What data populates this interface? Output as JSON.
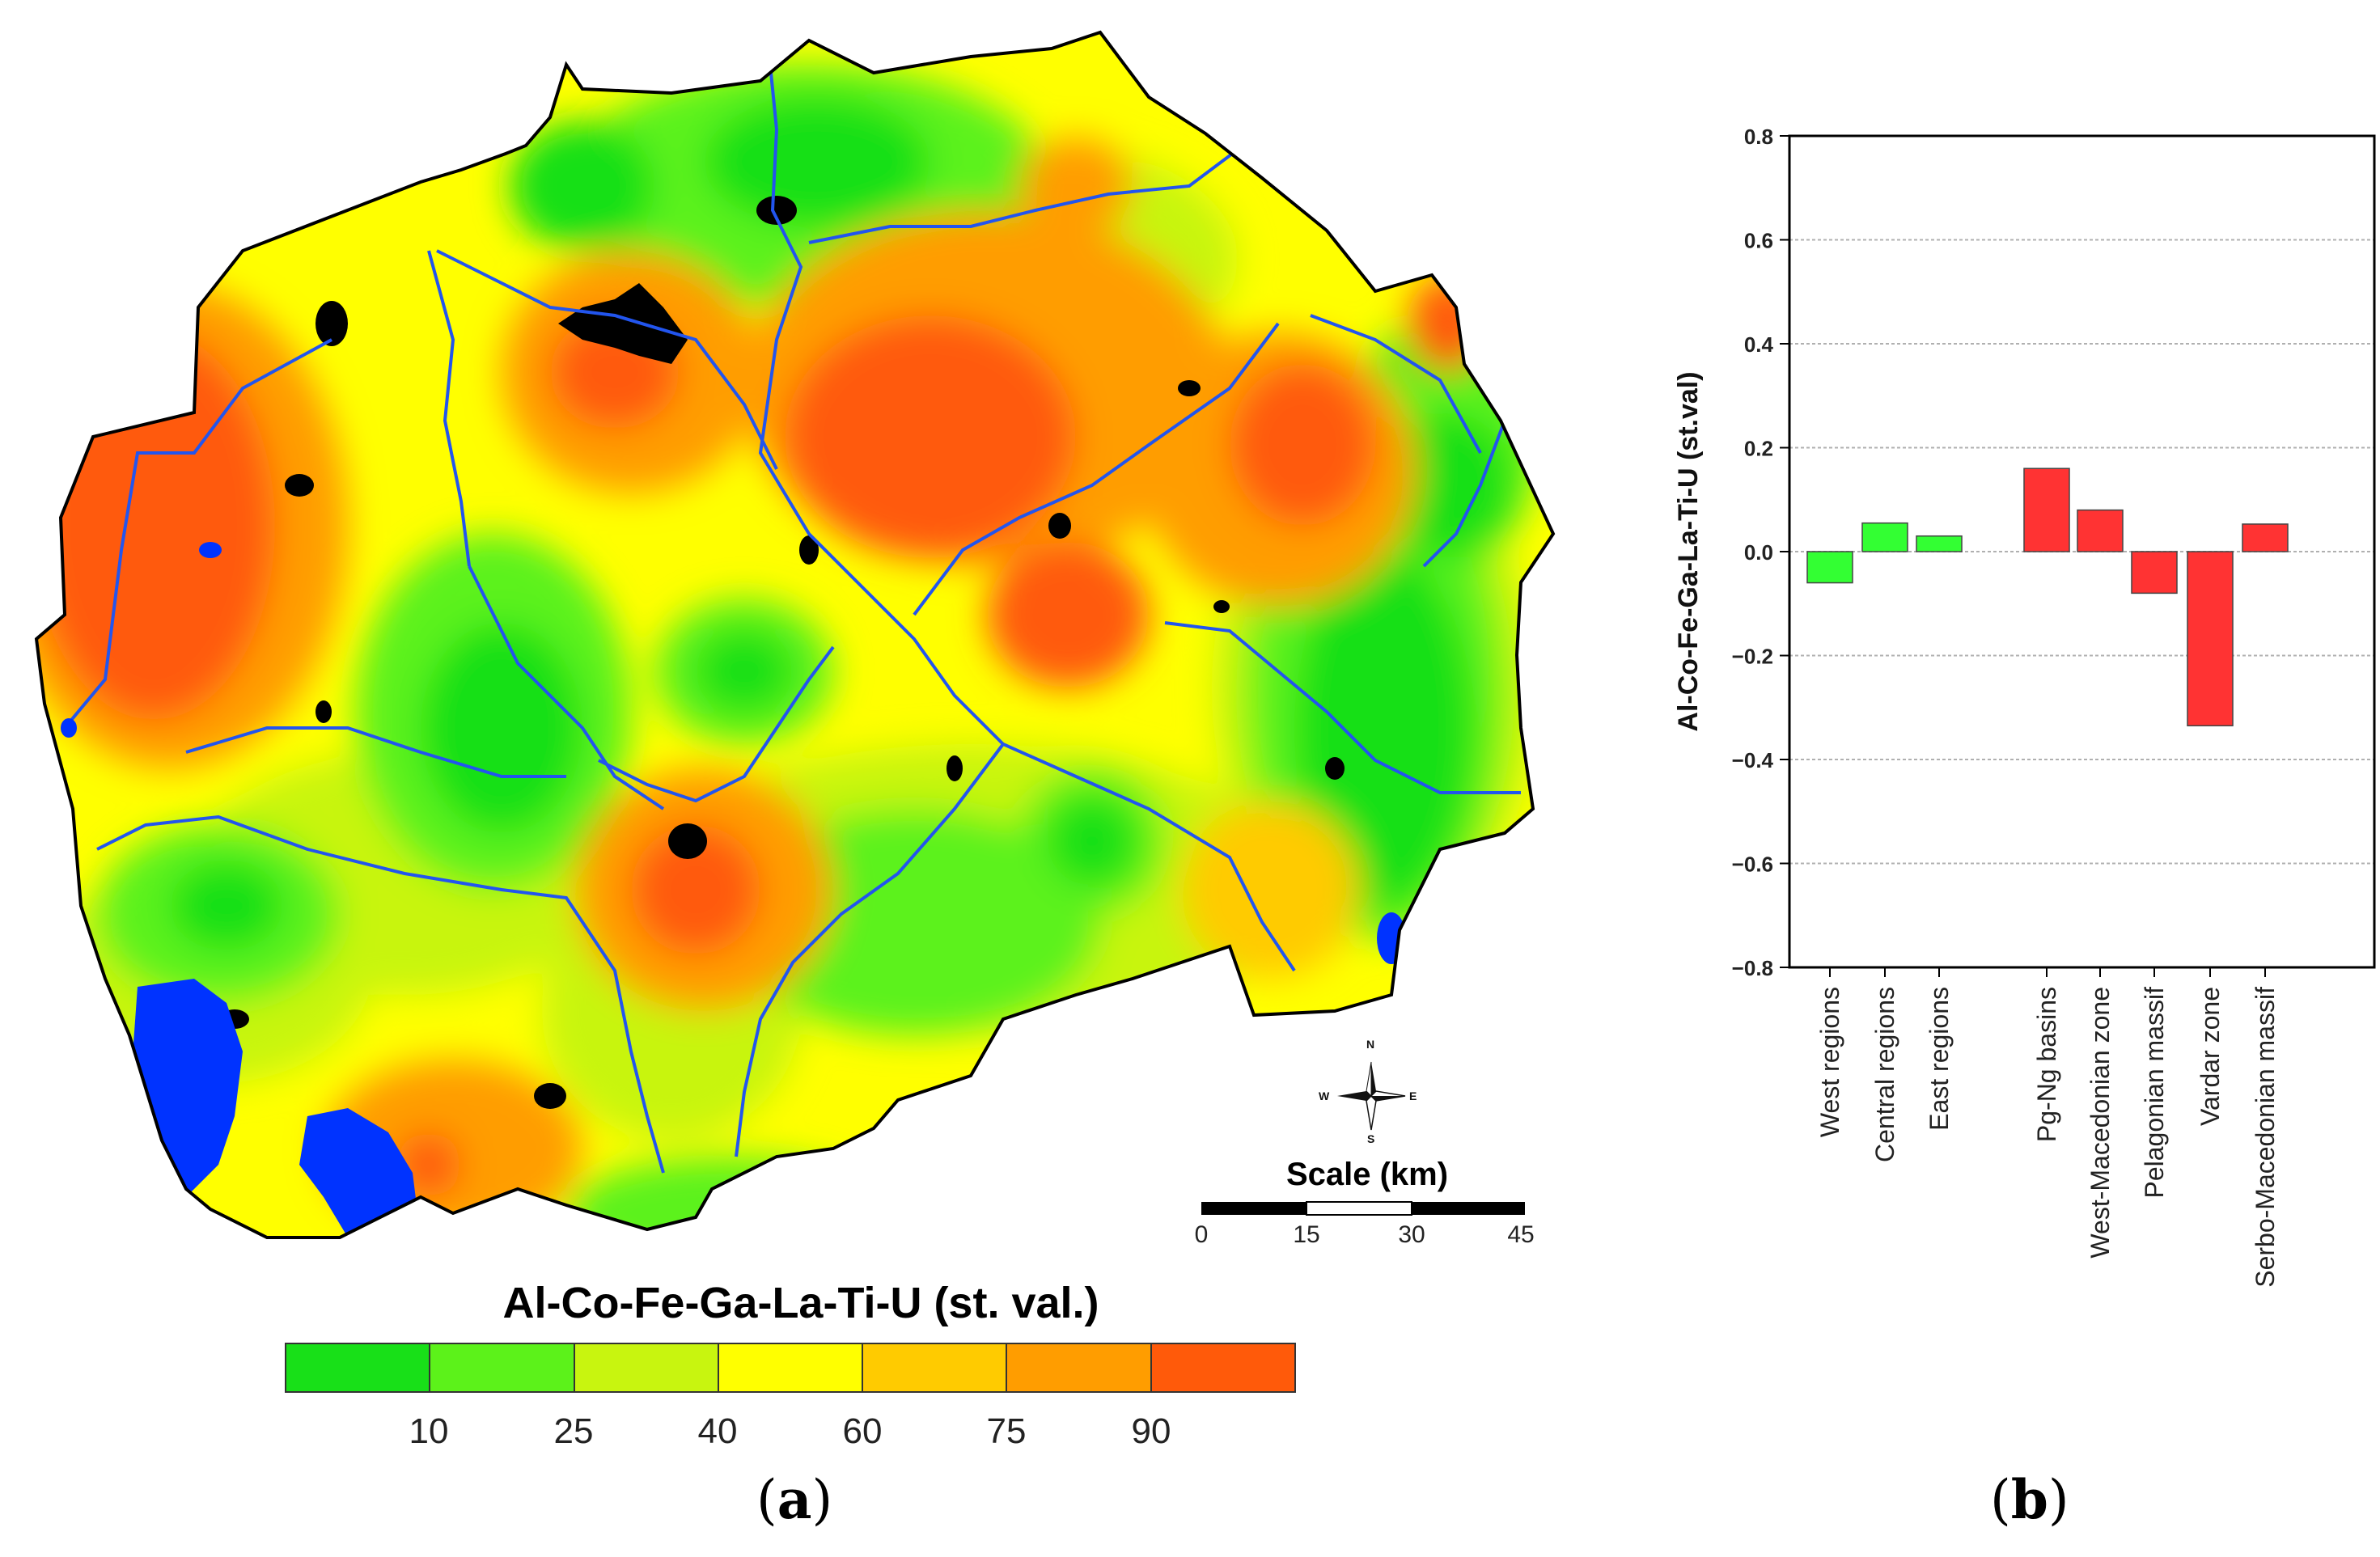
{
  "map": {
    "legend": {
      "title": "Al-Co-Fe-Ga-La-Ti-U (st. val.)",
      "colors": [
        "#18e018",
        "#5cf21a",
        "#c8f50f",
        "#ffff00",
        "#ffcb00",
        "#ff9d00",
        "#ff5a0a"
      ],
      "ticks": [
        "10",
        "25",
        "40",
        "60",
        "75",
        "90"
      ]
    },
    "scale": {
      "title": "Scale (km)",
      "ticks": [
        "0",
        "15",
        "30",
        "45"
      ]
    },
    "compass": {
      "n": "N",
      "s": "S",
      "e": "E",
      "w": "W"
    },
    "panel_label": {
      "open": "(",
      "letter": "a",
      "close": ")"
    },
    "colors": {
      "water": "#0033ff",
      "river": "#2255ee",
      "urban": "#000000",
      "border": "#000000"
    },
    "icon": "compass-rose-icon"
  },
  "chart": {
    "panel_label": {
      "open": "(",
      "letter": "b",
      "close": ")"
    },
    "colors": {
      "group1": "#33ff33",
      "group2": "#ff3333",
      "grid": "#b0b0b0"
    }
  },
  "chart_data": {
    "type": "bar",
    "ylabel": "Al-Co-Fe-Ga-La-Ti-U (st.val)",
    "xlabel": "",
    "ylim": [
      -0.8,
      0.8
    ],
    "yticks": [
      "0.8",
      "0.6",
      "0.4",
      "0.2",
      "0.0",
      "−0.2",
      "−0.4",
      "−0.6",
      "−0.8"
    ],
    "ytick_values": [
      0.8,
      0.6,
      0.4,
      0.2,
      0.0,
      -0.2,
      -0.4,
      -0.6,
      -0.8
    ],
    "grid": true,
    "categories": [
      "West regions",
      "Central regions",
      "East regions",
      "Pg-Ng basins",
      "West-Macedonian zone",
      "Pelagonian massif",
      "Vardar zone",
      "Serbo-Macedonian massif"
    ],
    "values": [
      -0.06,
      0.055,
      0.03,
      0.16,
      0.08,
      -0.08,
      -0.335,
      0.053
    ],
    "groups": [
      0,
      0,
      0,
      1,
      1,
      1,
      1,
      1
    ]
  }
}
